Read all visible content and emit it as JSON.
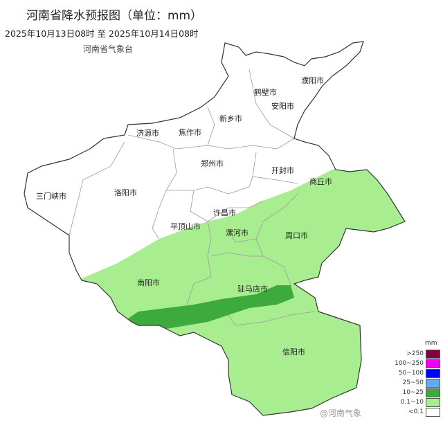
{
  "header": {
    "title": "河南省降水预报图（单位：mm）",
    "period": "2025年10月13日08时  至  2025年10月14日08时",
    "agency": "河南省气象台"
  },
  "cities": [
    {
      "name": "濮阳市"
    },
    {
      "name": "鹤壁市"
    },
    {
      "name": "安阳市"
    },
    {
      "name": "新乡市"
    },
    {
      "name": "济源市"
    },
    {
      "name": "焦作市"
    },
    {
      "name": "郑州市"
    },
    {
      "name": "开封市"
    },
    {
      "name": "商丘市"
    },
    {
      "name": "三门峡市"
    },
    {
      "name": "洛阳市"
    },
    {
      "name": "许昌市"
    },
    {
      "name": "平顶山市"
    },
    {
      "name": "漯河市"
    },
    {
      "name": "周口市"
    },
    {
      "name": "南阳市"
    },
    {
      "name": "驻马店市"
    },
    {
      "name": "信阳市"
    }
  ],
  "legend": {
    "unit": "mm",
    "items": [
      {
        "label": ">250",
        "color": "#800040"
      },
      {
        "label": "100~250",
        "color": "#f000f0"
      },
      {
        "label": "50~100",
        "color": "#0000ff"
      },
      {
        "label": "25~50",
        "color": "#66aaee"
      },
      {
        "label": "10~25",
        "color": "#3caa3c"
      },
      {
        "label": "0.1~10",
        "color": "#a8ee90"
      },
      {
        "label": "<0.1",
        "color": "#ffffff"
      }
    ]
  },
  "watermark": "@河南气象"
}
